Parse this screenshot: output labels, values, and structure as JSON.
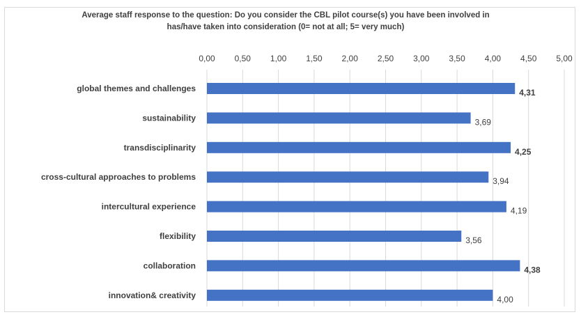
{
  "chart_data": {
    "type": "bar",
    "orientation": "horizontal",
    "title_lines": [
      "Average staff response to the question: Do you consider the CBL pilot course(s) you have been involved in",
      "has/have taken into consideration (0= not at all; 5= very much)"
    ],
    "categories": [
      "global themes and challenges",
      "sustainability",
      "transdisciplinarity",
      "cross-cultural approaches to problems",
      "intercultural experience",
      "flexibility",
      "collaboration",
      "innovation& creativity"
    ],
    "values": [
      4.31,
      3.69,
      4.25,
      3.94,
      4.19,
      3.56,
      4.38,
      4.0
    ],
    "value_labels": [
      "4,31",
      "3,69",
      "4,25",
      "3,94",
      "4,19",
      "3,56",
      "4,38",
      "4,00"
    ],
    "bold_value_labels": [
      true,
      false,
      true,
      false,
      false,
      false,
      true,
      false
    ],
    "xlim": [
      0,
      5
    ],
    "x_ticks": [
      "0,00",
      "0,50",
      "1,00",
      "1,50",
      "2,00",
      "2,50",
      "3,00",
      "3,50",
      "4,00",
      "4,50",
      "5,00"
    ],
    "x_axis_position": "top",
    "grid": true,
    "legend": "none",
    "bar_color": "#4472c4",
    "grid_color": "#d9d9d9",
    "text_color": "#404040"
  }
}
